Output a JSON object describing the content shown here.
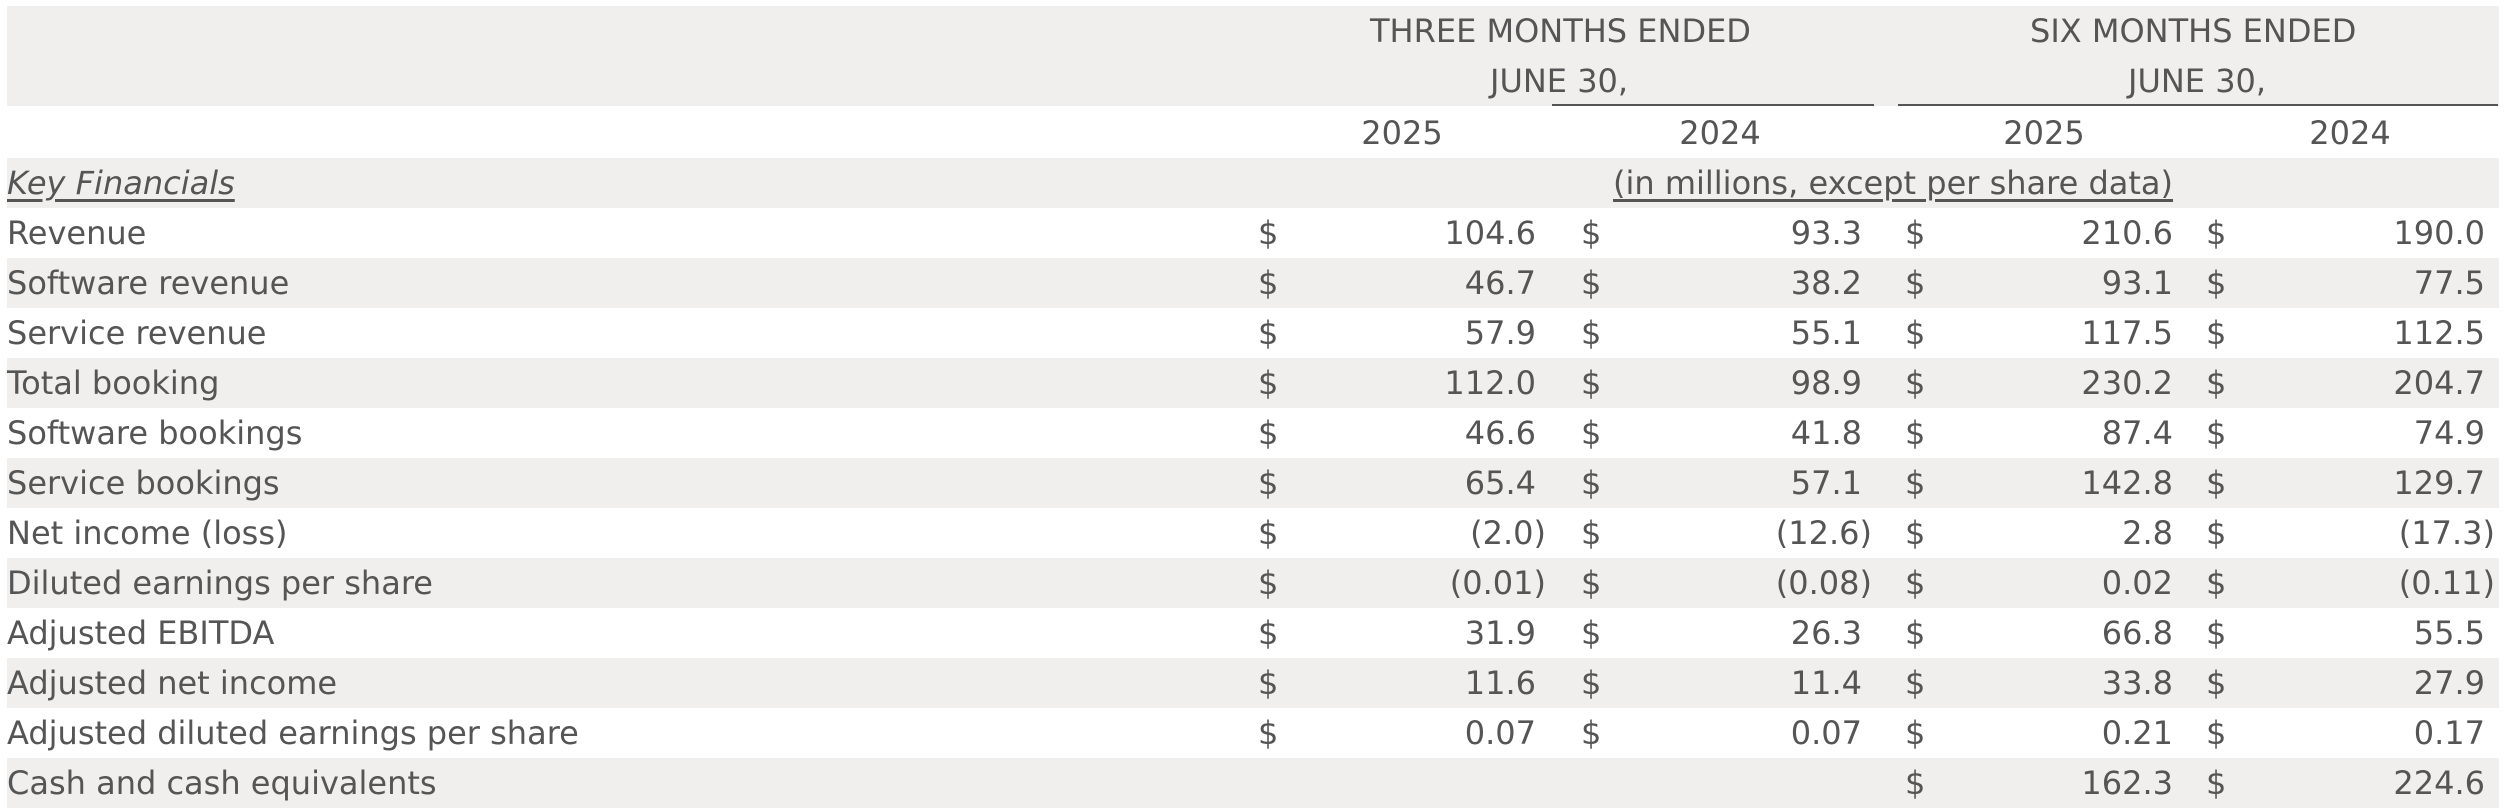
{
  "header": {
    "three_months_line1": "THREE MONTHS ENDED",
    "three_months_line2": "JUNE 30,",
    "six_months_line1": "SIX MONTHS ENDED",
    "six_months_line2": "JUNE 30,",
    "years": [
      "2025",
      "2024",
      "2025",
      "2024"
    ]
  },
  "section": {
    "label": "Key Financials",
    "units": "(in millions, except per share data)"
  },
  "currency_symbol": "$",
  "rows": [
    {
      "label": "Revenue",
      "values": [
        "104.6",
        "93.3",
        "210.6",
        "190.0"
      ]
    },
    {
      "label": "Software revenue",
      "values": [
        "46.7",
        "38.2",
        "93.1",
        "77.5"
      ]
    },
    {
      "label": "Service revenue",
      "values": [
        "57.9",
        "55.1",
        "117.5",
        "112.5"
      ]
    },
    {
      "label": "Total booking",
      "values": [
        "112.0",
        "98.9",
        "230.2",
        "204.7"
      ]
    },
    {
      "label": "Software bookings",
      "values": [
        "46.6",
        "41.8",
        "87.4",
        "74.9"
      ]
    },
    {
      "label": "Service bookings",
      "values": [
        "65.4",
        "57.1",
        "142.8",
        "129.7"
      ]
    },
    {
      "label": "Net income (loss)",
      "values": [
        "(2.0)",
        "(12.6)",
        "2.8",
        "(17.3)"
      ]
    },
    {
      "label": "Diluted earnings per share",
      "values": [
        "(0.01)",
        "(0.08)",
        "0.02",
        "(0.11)"
      ]
    },
    {
      "label": "Adjusted EBITDA",
      "values": [
        "31.9",
        "26.3",
        "66.8",
        "55.5"
      ]
    },
    {
      "label": "Adjusted net income",
      "values": [
        "11.6",
        "11.4",
        "33.8",
        "27.9"
      ]
    },
    {
      "label": "Adjusted diluted earnings per share",
      "values": [
        "0.07",
        "0.07",
        "0.21",
        "0.17"
      ]
    },
    {
      "label": "Cash and cash equivalents",
      "values": [
        "",
        "",
        "162.3",
        "224.6"
      ]
    }
  ]
}
